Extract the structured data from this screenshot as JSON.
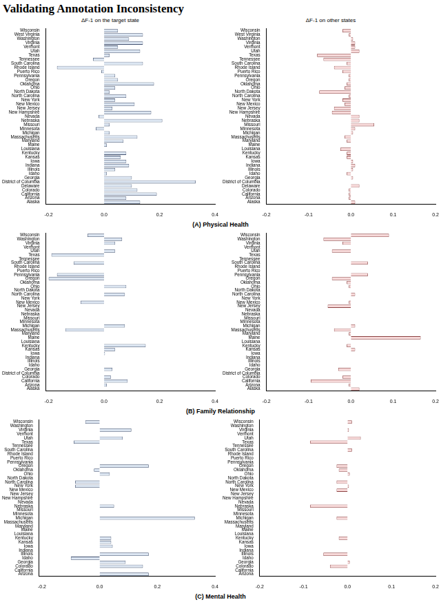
{
  "title": "Validating Annotation Inconsistency",
  "column_titles": [
    "ΔF-1 on the target state",
    "ΔF-1 on other states"
  ],
  "captions": [
    "(A) Physical Health",
    "(B) Family Relationship",
    "(C) Mental Health"
  ],
  "chart_data": [
    {
      "type": "bar",
      "orientation": "horizontal",
      "categories": [
        "Wisconsin",
        "West Virginia",
        "Washington",
        "Virginia",
        "Vermont",
        "Utah",
        "Texas",
        "Tennessee",
        "South Carolina",
        "Rhode Island",
        "Puerto Rico",
        "Pennsylvania",
        "Oregon",
        "Oklahoma",
        "Ohio",
        "North Dakota",
        "North Carolina",
        "New York",
        "New Mexico",
        "New Jersey",
        "New Hampshire",
        "Nevada",
        "Nebraska",
        "Missouri",
        "Minnesota",
        "Michigan",
        "Massachusetts",
        "Maryland",
        "Maine",
        "Louisiana",
        "Kentucky",
        "Kansas",
        "Iowa",
        "Indiana",
        "Illinois",
        "Idaho",
        "Georgia",
        "District of Columbia",
        "Delaware",
        "Colorado",
        "California",
        "Arizona",
        "Alaska"
      ],
      "values": [
        0.05,
        0.14,
        0.09,
        0.14,
        0.05,
        0.13,
        0.02,
        -0.04,
        0.14,
        -0.17,
        -0.01,
        0.04,
        0.05,
        0.18,
        0.04,
        0.02,
        0.08,
        0.04,
        0.11,
        0.03,
        0.17,
        -0.02,
        0.21,
        0.02,
        -0.03,
        0.02,
        0.12,
        0.07,
        0.01,
        0,
        0.08,
        0.06,
        0.08,
        0.09,
        0.04,
        0.01,
        0.1,
        0.33,
        0.1,
        0.12,
        0.19,
        0.08,
        0.13
      ],
      "color": "#dce6f2",
      "xlim": [
        -0.21,
        0.4
      ],
      "xticks": [
        -0.2,
        {
          "value": 0,
          "label": "0.0"
        },
        0.2,
        0.4
      ],
      "grid": false
    },
    {
      "type": "bar",
      "orientation": "horizontal",
      "categories": [
        "Wisconsin",
        "West Virginia",
        "Washington",
        "Virginia",
        "Vermont",
        "Utah",
        "Texas",
        "Tennessee",
        "South Carolina",
        "Rhode Island",
        "Puerto Rico",
        "Pennsylvania",
        "Oregon",
        "Oklahoma",
        "Ohio",
        "North Dakota",
        "North Carolina",
        "New York",
        "New Mexico",
        "New Jersey",
        "New Hampshire",
        "Nevada",
        "Nebraska",
        "Missouri",
        "Minnesota",
        "Michigan",
        "Massachusetts",
        "Maryland",
        "Maine",
        "Louisiana",
        "Kentucky",
        "Kansas",
        "Iowa",
        "Indiana",
        "Illinois",
        "Idaho",
        "Georgia",
        "District of Columbia",
        "Delaware",
        "Colorado",
        "California",
        "Arizona",
        "Alaska"
      ],
      "values": [
        -0.02,
        -0.005,
        0.005,
        0.01,
        0.01,
        0.02,
        -0.08,
        -0.065,
        -0.01,
        -0.04,
        -0.02,
        -0.005,
        -0.005,
        -0.01,
        -0.015,
        -0.075,
        -0.005,
        -0.02,
        -0.015,
        -0.04,
        -0.045,
        0.02,
        0.02,
        0.055,
        0.01,
        0.005,
        -0.015,
        -0.01,
        0,
        -0.025,
        -0.01,
        -0.01,
        0.005,
        0.01,
        0.005,
        -0.01,
        0.005,
        0,
        0.02,
        -0.005,
        -0.005,
        -0.005,
        0.01
      ],
      "color": "#f7d9d9",
      "xlim": [
        -0.2,
        0.2
      ],
      "xticks": [
        -0.2,
        -0.1,
        {
          "value": 0,
          "label": "0.0"
        },
        0.1,
        0.2
      ],
      "grid": false
    },
    {
      "type": "bar",
      "orientation": "horizontal",
      "categories": [
        "Wisconsin",
        "Washington",
        "Virginia",
        "Vermont",
        "Utah",
        "Texas",
        "Tennessee",
        "South Carolina",
        "Rhode Island",
        "Puerto Rico",
        "Pennsylvania",
        "Oregon",
        "Oklahoma",
        "Ohio",
        "North Dakota",
        "North Carolina",
        "New York",
        "New Mexico",
        "New Jersey",
        "Nevada",
        "Nebraska",
        "Missouri",
        "Minnesota",
        "Michigan",
        "Massachusetts",
        "Maryland",
        "Maine",
        "Louisiana",
        "Kentucky",
        "Kansas",
        "Iowa",
        "Indiana",
        "Illinois",
        "Idaho",
        "Georgia",
        "District of Columbia",
        "Colorado",
        "California",
        "Arizona",
        "Alaska"
      ],
      "values": [
        -0.06,
        0.065,
        0.04,
        0,
        0.04,
        -0.19,
        0,
        -0.11,
        0,
        0,
        -0.17,
        -0.2,
        0,
        0.08,
        0,
        0.075,
        0,
        -0.085,
        0,
        0,
        0,
        0,
        0,
        0.075,
        -0.14,
        0,
        0,
        0,
        0.15,
        0.04,
        0.003,
        0,
        0,
        0,
        0.03,
        0,
        0.025,
        0.085,
        0.01,
        0
      ],
      "color": "#dce6f2",
      "xlim": [
        -0.21,
        0.4
      ],
      "xticks": [
        -0.2,
        {
          "value": 0,
          "label": "0.0"
        },
        0.2,
        0.4
      ],
      "grid": false
    },
    {
      "type": "bar",
      "orientation": "horizontal",
      "categories": [
        "Wisconsin",
        "Washington",
        "Virginia",
        "Vermont",
        "Utah",
        "Texas",
        "Tennessee",
        "South Carolina",
        "Rhode Island",
        "Puerto Rico",
        "Pennsylvania",
        "Oregon",
        "Oklahoma",
        "Ohio",
        "North Dakota",
        "North Carolina",
        "New York",
        "New Mexico",
        "New Jersey",
        "Nevada",
        "Nebraska",
        "Missouri",
        "Minnesota",
        "Michigan",
        "Massachusetts",
        "Maryland",
        "Maine",
        "Louisiana",
        "Kentucky",
        "Kansas",
        "Iowa",
        "Indiana",
        "Illinois",
        "Idaho",
        "Georgia",
        "District of Columbia",
        "Colorado",
        "California",
        "Arizona",
        "Alaska"
      ],
      "values": [
        0.09,
        -0.065,
        -0.02,
        0,
        -0.045,
        0,
        0,
        0.04,
        0,
        0,
        0.04,
        -0.045,
        -0.01,
        -0.005,
        0,
        0.01,
        0,
        -0.005,
        -0.055,
        0,
        0,
        0,
        0,
        0.01,
        -0.04,
        -0.005,
        0.165,
        0,
        -0.01,
        0.01,
        0,
        0,
        0,
        0,
        -0.03,
        0,
        -0.02,
        -0.095,
        -0.005,
        0.02
      ],
      "color": "#f7d9d9",
      "xlim": [
        -0.2,
        0.2
      ],
      "xticks": [
        -0.2,
        -0.1,
        {
          "value": 0,
          "label": "0.0"
        },
        0.1,
        0.2
      ],
      "grid": false
    },
    {
      "type": "bar",
      "orientation": "horizontal",
      "categories": [
        "Wisconsin",
        "Washington",
        "Virginia",
        "Vermont",
        "Utah",
        "Texas",
        "Tennessee",
        "South Carolina",
        "Rhode Island",
        "Puerto Rico",
        "Pennsylvania",
        "Oregon",
        "Oklahoma",
        "Ohio",
        "North Dakota",
        "North Carolina",
        "New York",
        "New Mexico",
        "New Jersey",
        "New Hampshire",
        "Nevada",
        "Nebraska",
        "Missouri",
        "Minnesota",
        "Michigan",
        "Massachusetts",
        "Maryland",
        "Maine",
        "Louisiana",
        "Kentucky",
        "Kansas",
        "Iowa",
        "Indiana",
        "Illinois",
        "Idaho",
        "Georgia",
        "Colorado",
        "California",
        "Arizona"
      ],
      "values": [
        -0.05,
        0,
        0.11,
        0,
        0.08,
        -0.09,
        0,
        0,
        0,
        0,
        0,
        0.17,
        -0.02,
        0.035,
        0,
        -0.085,
        -0.085,
        0,
        0,
        0,
        0,
        0.05,
        0,
        0,
        0.33,
        0,
        0,
        0,
        0,
        0.04,
        0.04,
        0.045,
        0,
        0.17,
        -0.1,
        0.09,
        0.15,
        0,
        0.17
      ],
      "color": "#dce6f2",
      "xlim": [
        -0.21,
        0.4
      ],
      "xticks": [
        -0.2,
        {
          "value": 0,
          "label": "0.0"
        },
        0.2,
        0.4
      ],
      "grid": false
    },
    {
      "type": "bar",
      "orientation": "horizontal",
      "categories": [
        "Wisconsin",
        "Washington",
        "Virginia",
        "Vermont",
        "Utah",
        "Texas",
        "Tennessee",
        "South Carolina",
        "Rhode Island",
        "Puerto Rico",
        "Pennsylvania",
        "Oregon",
        "Oklahoma",
        "Ohio",
        "North Dakota",
        "North Carolina",
        "New York",
        "New Mexico",
        "New Jersey",
        "New Hampshire",
        "Nevada",
        "Nebraska",
        "Missouri",
        "Minnesota",
        "Michigan",
        "Massachusetts",
        "Maryland",
        "Maine",
        "Louisiana",
        "Kentucky",
        "Kansas",
        "Iowa",
        "Indiana",
        "Illinois",
        "Idaho",
        "Georgia",
        "Colorado",
        "California",
        "Arizona"
      ],
      "values": [
        0.01,
        0,
        0.003,
        0,
        0.03,
        -0.085,
        0,
        0.01,
        0,
        0,
        0,
        -0.025,
        -0.02,
        0.005,
        0,
        -0.025,
        0.003,
        -0.025,
        0,
        0,
        0,
        -0.085,
        0,
        0,
        -0.025,
        0,
        0,
        0,
        0,
        -0.02,
        0,
        0,
        0,
        -0.055,
        0,
        0.005,
        -0.04,
        0,
        0
      ],
      "color": "#f7d9d9",
      "xlim": [
        -0.2,
        0.2
      ],
      "xticks": [
        -0.2,
        -0.1,
        {
          "value": 0,
          "label": "0.0"
        },
        0.1,
        0.2
      ],
      "grid": false
    }
  ]
}
